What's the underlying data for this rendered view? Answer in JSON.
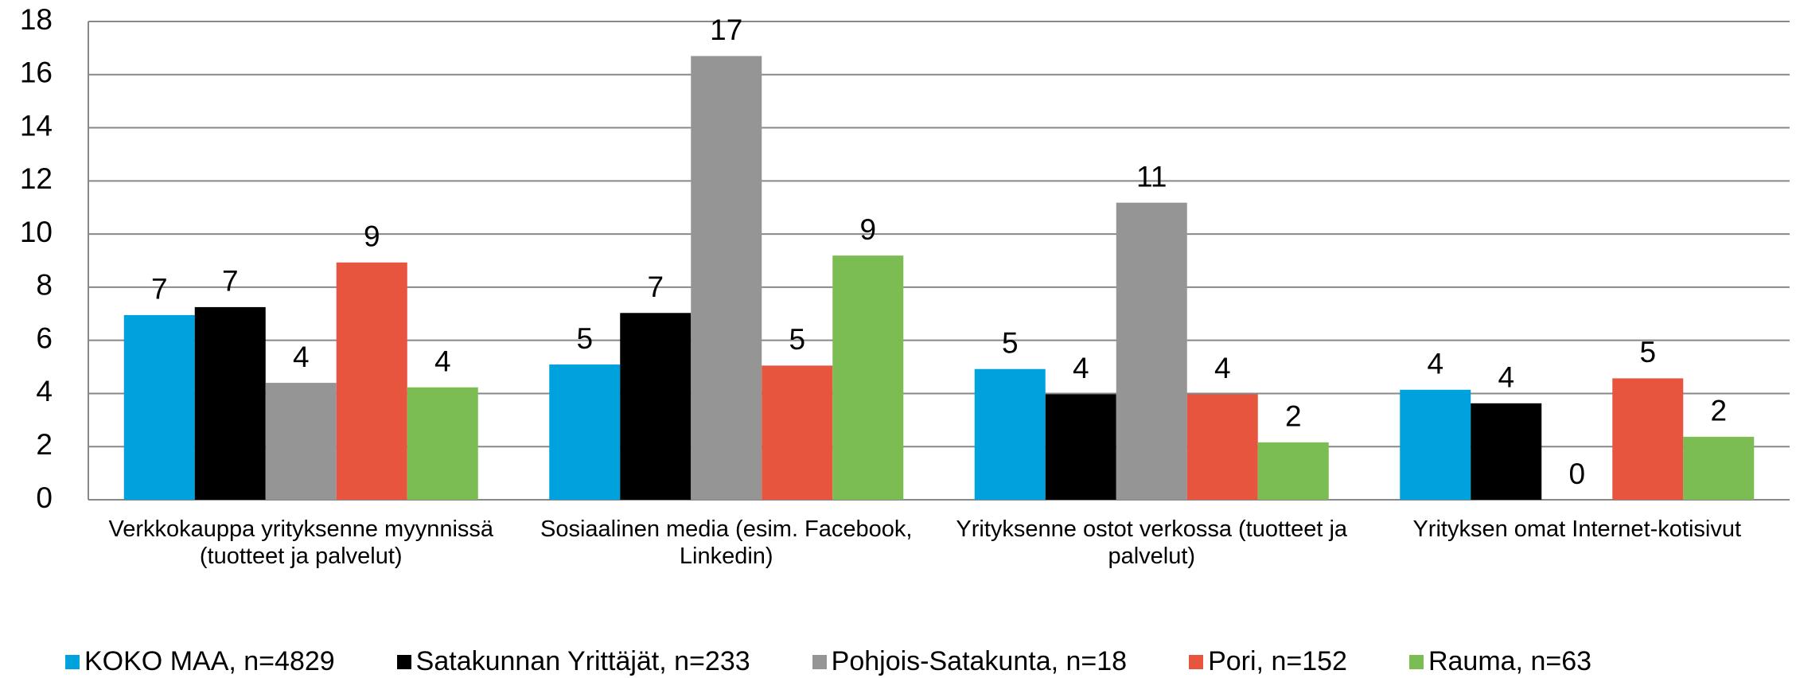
{
  "chart_data": {
    "type": "bar",
    "categories": [
      "Verkkokauppa yrityksenne myynnissä (tuotteet ja palvelut)",
      "Sosiaalinen media (esim. Facebook, Linkedin)",
      "Yrityksenne ostot verkossa (tuotteet ja palvelut)",
      "Yrityksen omat Internet-kotisivut"
    ],
    "series": [
      {
        "name": "KOKO MAA, n=4829",
        "color": "#00a2de",
        "values": [
          6.95,
          5.09,
          4.92,
          4.14
        ],
        "value_labels": [
          "7",
          "5",
          "5",
          "4"
        ]
      },
      {
        "name": "Satakunnan Yrittäjät, n=233",
        "color": "#000000",
        "values": [
          7.25,
          7.03,
          3.97,
          3.63
        ],
        "value_labels": [
          "7",
          "7",
          "4",
          "4"
        ]
      },
      {
        "name": "Pohjois-Satakunta, n=18",
        "color": "#959595",
        "values": [
          4.4,
          16.7,
          11.18,
          0
        ],
        "value_labels": [
          "4",
          "17",
          "11",
          "0"
        ]
      },
      {
        "name": "Pori, n=152",
        "color": "#e8553f",
        "values": [
          8.93,
          5.05,
          3.97,
          4.57
        ],
        "value_labels": [
          "9",
          "5",
          "4",
          "5"
        ]
      },
      {
        "name": "Rauma, n=63",
        "color": "#7bbd52",
        "values": [
          4.23,
          9.19,
          2.16,
          2.37
        ],
        "value_labels": [
          "4",
          "9",
          "2",
          "2"
        ]
      }
    ],
    "ylim": [
      0,
      18
    ],
    "yticks": [
      0,
      2,
      4,
      6,
      8,
      10,
      12,
      14,
      16,
      18
    ],
    "grid": true
  }
}
